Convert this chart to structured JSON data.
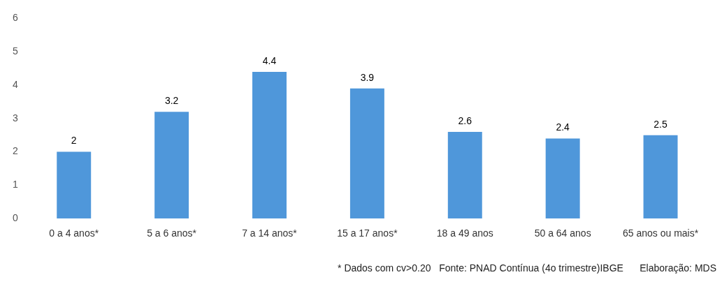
{
  "chart_data": {
    "type": "bar",
    "categories": [
      "0 a 4 anos*",
      "5 a 6 anos*",
      "7 a 14 anos*",
      "15 a 17 anos*",
      "18 a 49 anos",
      "50 a 64 anos",
      "65 anos ou mais*"
    ],
    "values": [
      2,
      3.2,
      4.4,
      3.9,
      2.6,
      2.4,
      2.5
    ],
    "color": "#4f97da",
    "ylim": [
      0,
      6
    ],
    "yticks": [
      0,
      1,
      2,
      3,
      4,
      5,
      6
    ],
    "grid": false,
    "legend": false,
    "data_labels": true,
    "annotations": [
      "* Dados com cv>0.20   Fonte: PNAD Contínua (4o trimestre)IBGE      Elaboração: MDS"
    ]
  }
}
